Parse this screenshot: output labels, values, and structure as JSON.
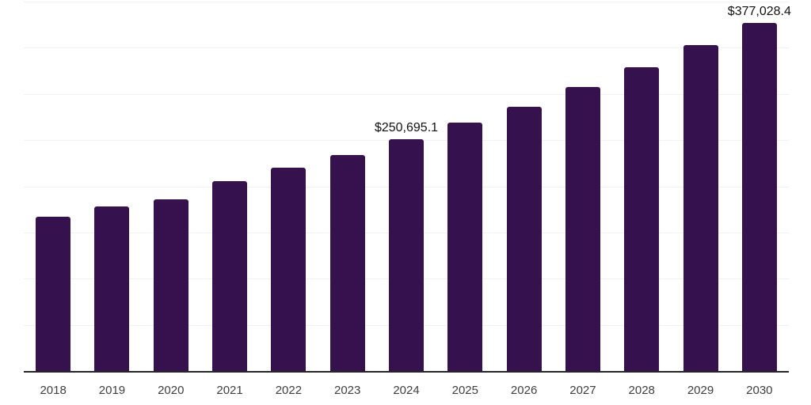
{
  "chart_data": {
    "type": "bar",
    "categories": [
      "2018",
      "2019",
      "2020",
      "2021",
      "2022",
      "2023",
      "2024",
      "2025",
      "2026",
      "2027",
      "2028",
      "2029",
      "2030"
    ],
    "values": [
      167300,
      178200,
      185900,
      205300,
      220100,
      233800,
      250695.1,
      268700,
      286300,
      307200,
      329200,
      353100,
      377028.4
    ],
    "data_labels": {
      "2024": "$250,695.1",
      "2030": "$377,028.4"
    },
    "title": "",
    "xlabel": "",
    "ylabel": "",
    "ylim": [
      0,
      400000
    ],
    "grid_step": 50000,
    "grid_on": true,
    "legend_position": "none",
    "bar_color": "#35114d",
    "gridline_color": "#f2f2f2",
    "axis_line_color": "#262626",
    "data_label_color": "#111111",
    "tick_label_color": "#3f3f3f"
  }
}
